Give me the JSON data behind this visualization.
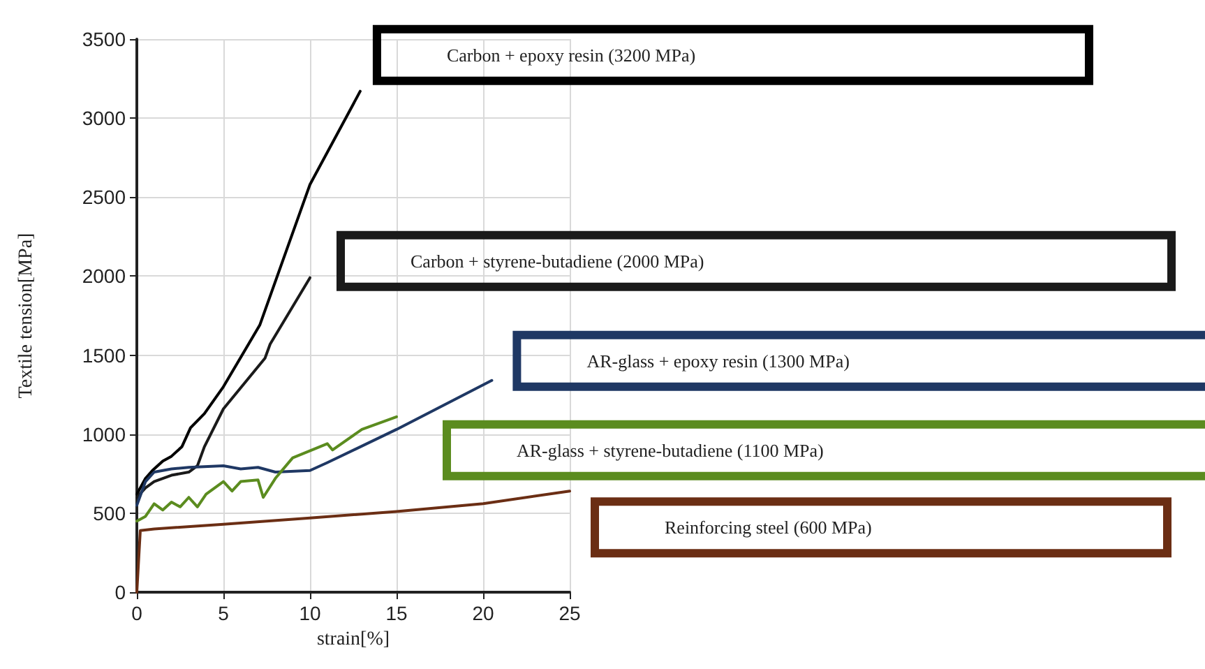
{
  "chart_data": {
    "type": "line",
    "xlabel": "strain[%]",
    "ylabel": "Textile tension[MPa]",
    "xlim": [
      0,
      25
    ],
    "xticks": [
      0,
      5,
      10,
      15,
      20,
      25
    ],
    "ylim": [
      0,
      3500
    ],
    "yticks": [
      0,
      500,
      1000,
      1500,
      2000,
      2500,
      3000,
      3500
    ],
    "grid": true,
    "legend": false,
    "marker": "none",
    "line_style": "solid",
    "series": [
      {
        "name": "Carbon + epoxy resin (3200 MPa)",
        "color": "#000000",
        "x": [
          0,
          0.5,
          0.9,
          1.5,
          2,
          2.6,
          3.1,
          3.9,
          5,
          7.1,
          10,
          12.9
        ],
        "values": [
          620,
          720,
          770,
          830,
          860,
          920,
          1040,
          1130,
          1300,
          1690,
          2580,
          3170
        ]
      },
      {
        "name": "Carbon + styrene-butadiene (2000 MPa)",
        "color": "#1a1a1a",
        "x": [
          0,
          0.5,
          1,
          2,
          3,
          3.5,
          3.9,
          5,
          7.4,
          7.7,
          10
        ],
        "values": [
          600,
          660,
          700,
          740,
          760,
          800,
          920,
          1160,
          1480,
          1570,
          1990
        ]
      },
      {
        "name": "AR-glass + epoxy resin (1300 MPa)",
        "color": "#1f3864",
        "x": [
          0,
          0.5,
          1,
          2,
          3,
          5,
          6,
          7,
          8,
          10,
          11,
          15,
          20.5
        ],
        "values": [
          550,
          700,
          760,
          780,
          790,
          800,
          780,
          790,
          760,
          770,
          820,
          1030,
          1340
        ]
      },
      {
        "name": "AR-glass + styrene-butadiene (1100 MPa)",
        "color": "#5b8c1f",
        "x": [
          0,
          0.5,
          1,
          1.5,
          2,
          2.5,
          3,
          3.5,
          4,
          5,
          5.5,
          6,
          7,
          7.3,
          8,
          9,
          11,
          11.3,
          13,
          15
        ],
        "values": [
          450,
          480,
          560,
          520,
          570,
          540,
          600,
          540,
          620,
          700,
          640,
          700,
          710,
          600,
          720,
          850,
          940,
          900,
          1030,
          1110
        ]
      },
      {
        "name": "Reinforcing steel (600 MPa)",
        "color": "#6b2e14",
        "x": [
          0,
          0.2,
          1,
          5,
          10,
          15,
          20,
          25
        ],
        "values": [
          0,
          390,
          400,
          430,
          470,
          510,
          560,
          640
        ]
      }
    ]
  }
}
